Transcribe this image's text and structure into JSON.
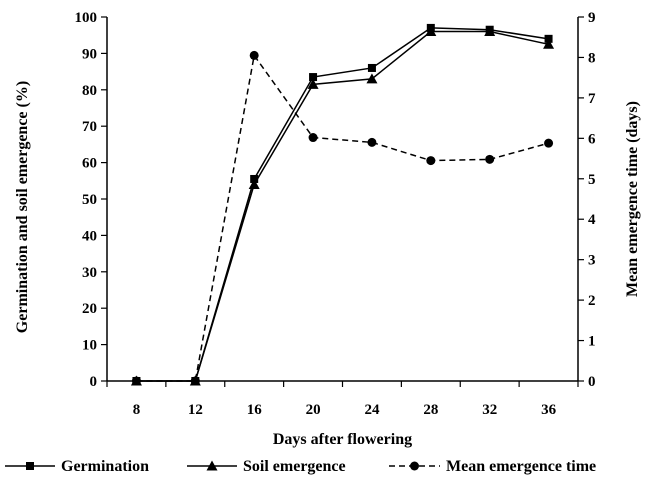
{
  "chart_data": {
    "type": "line",
    "x": [
      8,
      12,
      16,
      20,
      24,
      28,
      32,
      36
    ],
    "xlabel": "Days after flowering",
    "ylabel": "Germination  and soil emergence (%)",
    "y2label": "Mean emergence time (days)",
    "xlim": [
      6,
      38
    ],
    "ylim": [
      0,
      100
    ],
    "y2lim": [
      0,
      9
    ],
    "x_ticks": [
      "8",
      "12",
      "16",
      "20",
      "24",
      "28",
      "32",
      "36"
    ],
    "y_ticks": [
      "0",
      "10",
      "20",
      "30",
      "40",
      "50",
      "60",
      "70",
      "80",
      "90",
      "100"
    ],
    "y2_ticks": [
      "0",
      "1",
      "2",
      "3",
      "4",
      "5",
      "6",
      "7",
      "8",
      "9"
    ],
    "grid": false,
    "legend_position": "bottom",
    "series": [
      {
        "name": "Germination",
        "axis": "left",
        "marker": "square",
        "line": "solid",
        "values": [
          0,
          0,
          55.5,
          83.5,
          86,
          97,
          96.5,
          94
        ]
      },
      {
        "name": "Soil emergence",
        "axis": "left",
        "marker": "triangle",
        "line": "solid",
        "values": [
          0,
          0,
          54,
          81.5,
          83,
          96,
          96,
          92.5
        ]
      },
      {
        "name": "Mean emergence time",
        "axis": "right",
        "marker": "circle",
        "line": "dashed",
        "values": [
          0,
          0,
          8.05,
          6.02,
          5.9,
          5.45,
          5.48,
          5.88
        ]
      }
    ],
    "colors": {
      "lines": "#000000",
      "background": "#ffffff"
    }
  }
}
